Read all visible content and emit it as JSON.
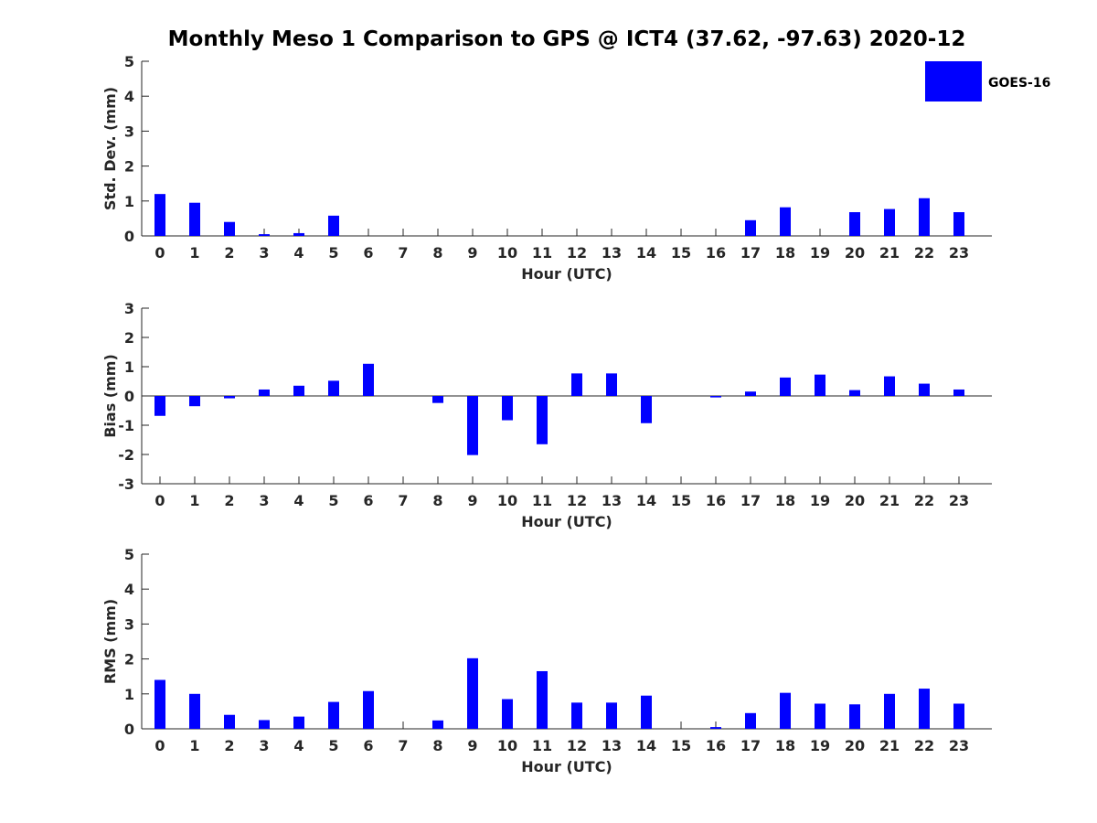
{
  "title": "Monthly Meso 1 Comparison to GPS @ ICT4 (37.62, -97.63) 2020-12",
  "legend": {
    "label": "GOES-16",
    "color": "#0000ff"
  },
  "chart_data": [
    {
      "type": "bar",
      "name": "std-dev",
      "xlabel": "Hour (UTC)",
      "ylabel": "Std. Dev. (mm)",
      "ylim": [
        0,
        5
      ],
      "yticks": [
        "0",
        "1",
        "2",
        "3",
        "4",
        "5"
      ],
      "categories": [
        "0",
        "1",
        "2",
        "3",
        "4",
        "5",
        "6",
        "7",
        "8",
        "9",
        "10",
        "11",
        "12",
        "13",
        "14",
        "15",
        "16",
        "17",
        "18",
        "19",
        "20",
        "21",
        "22",
        "23"
      ],
      "series": [
        {
          "name": "GOES-16",
          "values": [
            1.2,
            0.95,
            0.4,
            0.05,
            0.08,
            0.58,
            0,
            0,
            0,
            0,
            0,
            0,
            0,
            0,
            0,
            0,
            0,
            0.45,
            0.82,
            0,
            0.68,
            0.77,
            1.08,
            0.68
          ]
        }
      ]
    },
    {
      "type": "bar",
      "name": "bias",
      "xlabel": "Hour (UTC)",
      "ylabel": "Bias (mm)",
      "ylim": [
        -3,
        3
      ],
      "yticks": [
        "-3",
        "-2",
        "-1",
        "0",
        "1",
        "2",
        "3"
      ],
      "categories": [
        "0",
        "1",
        "2",
        "3",
        "4",
        "5",
        "6",
        "7",
        "8",
        "9",
        "10",
        "11",
        "12",
        "13",
        "14",
        "15",
        "16",
        "17",
        "18",
        "19",
        "20",
        "21",
        "22",
        "23"
      ],
      "series": [
        {
          "name": "GOES-16",
          "values": [
            -0.68,
            -0.35,
            -0.08,
            0.22,
            0.35,
            0.52,
            1.1,
            0,
            -0.24,
            -2.02,
            -0.83,
            -1.65,
            0.77,
            0.77,
            -0.93,
            0,
            -0.05,
            0.15,
            0.63,
            0.73,
            0.2,
            0.67,
            0.42,
            0.22
          ]
        }
      ]
    },
    {
      "type": "bar",
      "name": "rms",
      "xlabel": "Hour (UTC)",
      "ylabel": "RMS (mm)",
      "ylim": [
        0,
        5
      ],
      "yticks": [
        "0",
        "1",
        "2",
        "3",
        "4",
        "5"
      ],
      "categories": [
        "0",
        "1",
        "2",
        "3",
        "4",
        "5",
        "6",
        "7",
        "8",
        "9",
        "10",
        "11",
        "12",
        "13",
        "14",
        "15",
        "16",
        "17",
        "18",
        "19",
        "20",
        "21",
        "22",
        "23"
      ],
      "series": [
        {
          "name": "GOES-16",
          "values": [
            1.4,
            1.0,
            0.4,
            0.25,
            0.35,
            0.77,
            1.08,
            0,
            0.24,
            2.02,
            0.85,
            1.65,
            0.75,
            0.75,
            0.95,
            0,
            0.05,
            0.45,
            1.03,
            0.72,
            0.7,
            1.0,
            1.15,
            0.72
          ]
        }
      ]
    }
  ]
}
